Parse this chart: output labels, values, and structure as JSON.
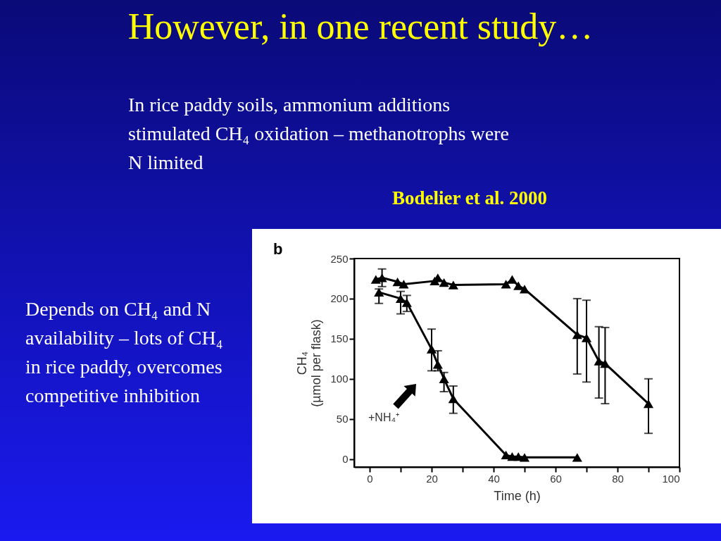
{
  "chart_data": {
    "type": "line",
    "title": "However, in one recent study…",
    "subtitle": "In rice paddy soils, ammonium additions stimulated CH₄ oxidation – methanotrophs were N limited",
    "annotations": [
      "Bodelier et al. 2000",
      "Depends on CH₄ and N availability – lots of CH₄ in rice paddy, overcomes competitive inhibition",
      "b",
      "+NH₄⁺"
    ],
    "xlabel": "Time (h)",
    "ylabel": "CH₄\n(µmol per flask)",
    "series": [
      {
        "color": "#000000",
        "x": [
          2,
          4,
          9,
          11,
          21,
          22,
          24,
          27,
          44,
          46,
          48,
          50,
          67,
          70,
          74,
          76,
          90
        ],
        "values": [
          224,
          226,
          221,
          218,
          222,
          226,
          220,
          217,
          218,
          224,
          216,
          212,
          155,
          151,
          122,
          119,
          69
        ],
        "errors": [
          null,
          [
            215,
            237
          ],
          null,
          null,
          null,
          null,
          null,
          null,
          null,
          null,
          null,
          null,
          [
            106,
            200
          ],
          [
            96,
            198
          ],
          [
            76,
            165
          ],
          [
            69,
            164
          ],
          [
            32,
            100
          ]
        ]
      },
      {
        "color": "#000000",
        "x": [
          3,
          10,
          12,
          20,
          22,
          24,
          27,
          44,
          46,
          48,
          50,
          67
        ],
        "values": [
          208,
          200,
          195,
          137,
          118,
          100,
          75,
          5,
          3,
          3,
          2,
          2
        ],
        "errors": [
          [
            194,
            212
          ],
          [
            181,
            209
          ],
          [
            184,
            204
          ],
          [
            110,
            162
          ],
          [
            110,
            135
          ],
          [
            84,
            108
          ],
          [
            57,
            91
          ],
          null,
          null,
          null,
          null,
          null
        ]
      }
    ],
    "xlim": [
      -5,
      100
    ],
    "ylim": [
      -10,
      250
    ],
    "xticks": [
      0,
      {
        "value": 10,
        "label": null
      },
      20,
      {
        "value": 30,
        "label": null
      },
      40,
      {
        "value": 50,
        "label": null
      },
      60,
      {
        "value": 70,
        "label": null
      },
      80,
      {
        "value": 90,
        "label": null
      },
      100
    ],
    "yticks": [
      0,
      50,
      100,
      150,
      200,
      250
    ],
    "marker": "triangle",
    "line_style": "solid",
    "grid": false,
    "legend": false
  }
}
